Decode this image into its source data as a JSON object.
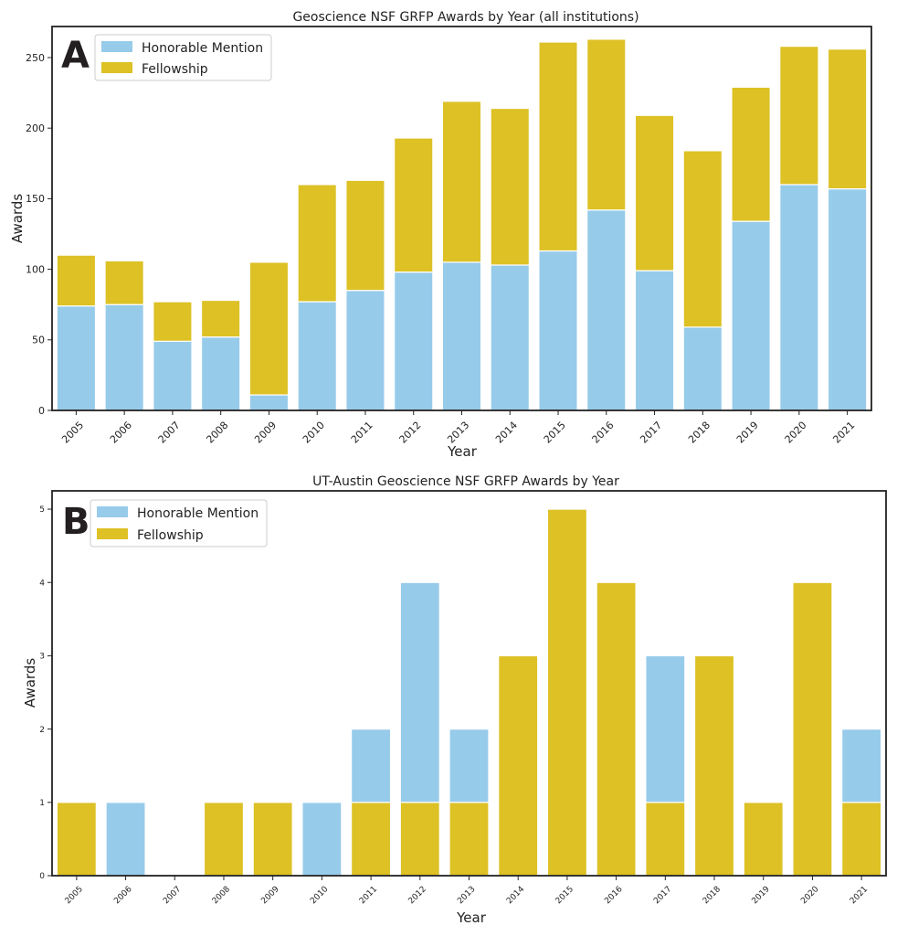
{
  "chart_data": [
    {
      "type": "bar",
      "stacked": true,
      "panel_label": "A",
      "title": "Geoscience NSF GRFP Awards by Year (all institutions)",
      "xlabel": "Year",
      "ylabel": "Awards",
      "ylim": [
        0,
        272
      ],
      "yticks": [
        0,
        50,
        100,
        150,
        200,
        250
      ],
      "grid": false,
      "legend_position": "top-left",
      "categories": [
        "2005",
        "2006",
        "2007",
        "2008",
        "2009",
        "2010",
        "2011",
        "2012",
        "2013",
        "2014",
        "2015",
        "2016",
        "2017",
        "2018",
        "2019",
        "2020",
        "2021"
      ],
      "series": [
        {
          "name": "Honorable Mention",
          "color": "#97cbea",
          "values": [
            74,
            75,
            49,
            52,
            11,
            77,
            85,
            98,
            105,
            103,
            113,
            142,
            99,
            59,
            134,
            160,
            157
          ]
        },
        {
          "name": "Fellowship",
          "color": "#ddc125",
          "values": [
            36,
            31,
            28,
            26,
            94,
            83,
            78,
            95,
            114,
            111,
            148,
            121,
            110,
            125,
            95,
            98,
            99
          ]
        }
      ]
    },
    {
      "type": "bar",
      "stacked": true,
      "panel_label": "B",
      "title": "UT-Austin Geoscience NSF GRFP Awards by Year",
      "xlabel": "Year",
      "ylabel": "Awards",
      "ylim": [
        0,
        5.25
      ],
      "yticks": [
        0,
        1,
        2,
        3,
        4,
        5
      ],
      "grid": false,
      "legend_position": "top-left",
      "categories": [
        "2005",
        "2006",
        "2007",
        "2008",
        "2009",
        "2010",
        "2011",
        "2012",
        "2013",
        "2014",
        "2015",
        "2016",
        "2017",
        "2018",
        "2019",
        "2020",
        "2021"
      ],
      "series": [
        {
          "name": "Fellowship",
          "color": "#ddc125",
          "values": [
            1,
            0,
            0,
            1,
            1,
            0,
            1,
            1,
            1,
            3,
            5,
            4,
            1,
            3,
            1,
            4,
            1
          ]
        },
        {
          "name": "Honorable Mention",
          "color": "#97cbea",
          "values": [
            0,
            1,
            0,
            0,
            0,
            1,
            1,
            3,
            1,
            0,
            0,
            0,
            2,
            0,
            0,
            0,
            1
          ]
        }
      ]
    }
  ]
}
